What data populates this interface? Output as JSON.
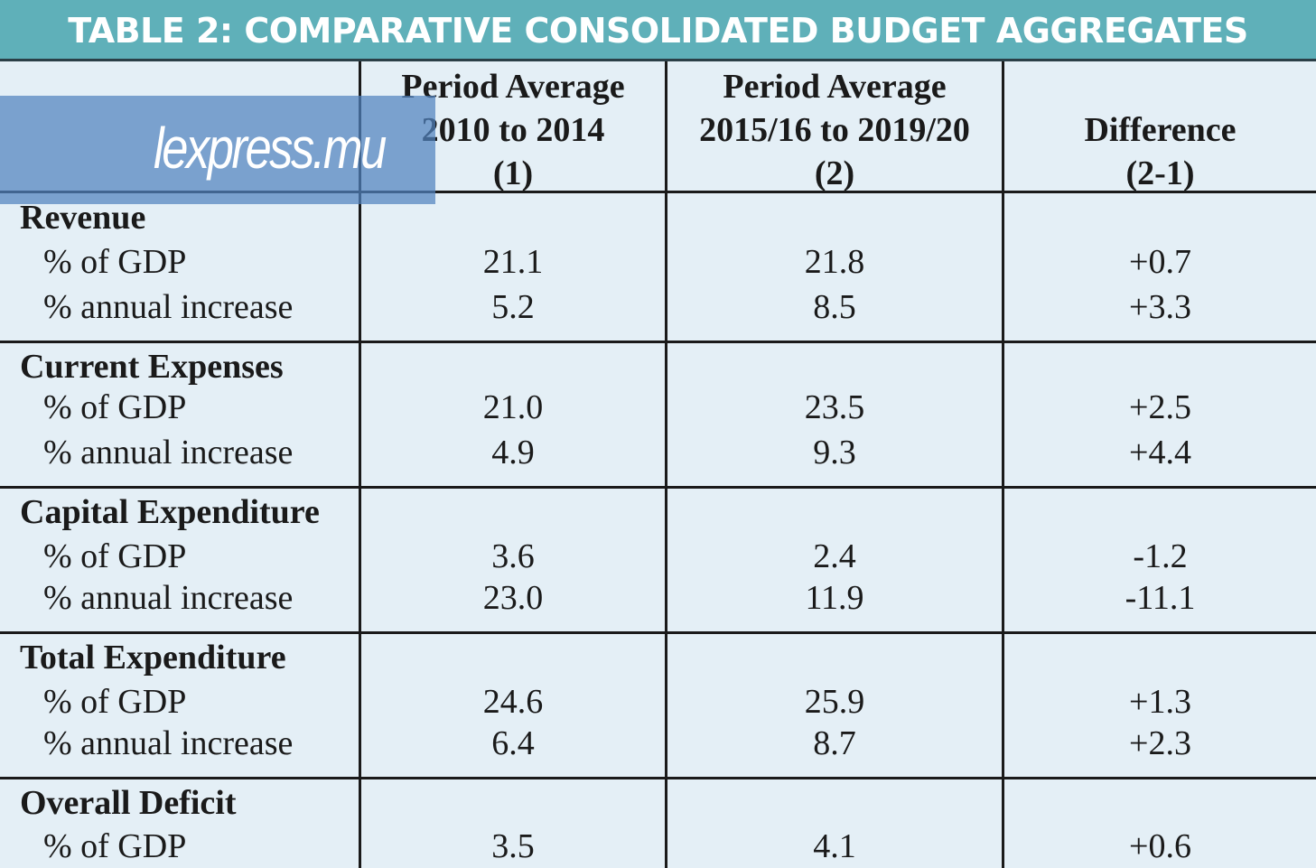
{
  "title": "TABLE 2: COMPARATIVE CONSOLIDATED BUDGET AGGREGATES",
  "watermark": "lexpress.mu",
  "columns": [
    {
      "lines": [
        "Period Average",
        "2010 to 2014",
        "(1)"
      ]
    },
    {
      "lines": [
        "Period Average",
        "2015/16 to 2019/20",
        "(2)"
      ]
    },
    {
      "lines": [
        "Difference",
        "(2-1)"
      ]
    }
  ],
  "sections": [
    {
      "title": "Revenue",
      "rows": [
        {
          "label": "% of GDP",
          "values": [
            "21.1",
            "21.8",
            "+0.7"
          ]
        },
        {
          "label": "% annual increase",
          "values": [
            "5.2",
            "8.5",
            "+3.3"
          ]
        }
      ]
    },
    {
      "title": "Current Expenses",
      "rows": [
        {
          "label": "% of GDP",
          "values": [
            "21.0",
            "23.5",
            "+2.5"
          ]
        },
        {
          "label": "% annual increase",
          "values": [
            "4.9",
            "9.3",
            "+4.4"
          ]
        }
      ]
    },
    {
      "title": "Capital Expenditure",
      "rows": [
        {
          "label": "% of GDP",
          "values": [
            "3.6",
            "2.4",
            "-1.2"
          ]
        },
        {
          "label": "% annual increase",
          "values": [
            "23.0",
            "11.9",
            "-11.1"
          ]
        }
      ]
    },
    {
      "title": "Total Expenditure",
      "rows": [
        {
          "label": "% of GDP",
          "values": [
            "24.6",
            "25.9",
            "+1.3"
          ]
        },
        {
          "label": "% annual increase",
          "values": [
            "6.4",
            "8.7",
            "+2.3"
          ]
        }
      ]
    },
    {
      "title": "Overall Deficit",
      "rows": [
        {
          "label": "% of GDP",
          "values": [
            "3.5",
            "4.1",
            "+0.6"
          ]
        }
      ]
    }
  ]
}
